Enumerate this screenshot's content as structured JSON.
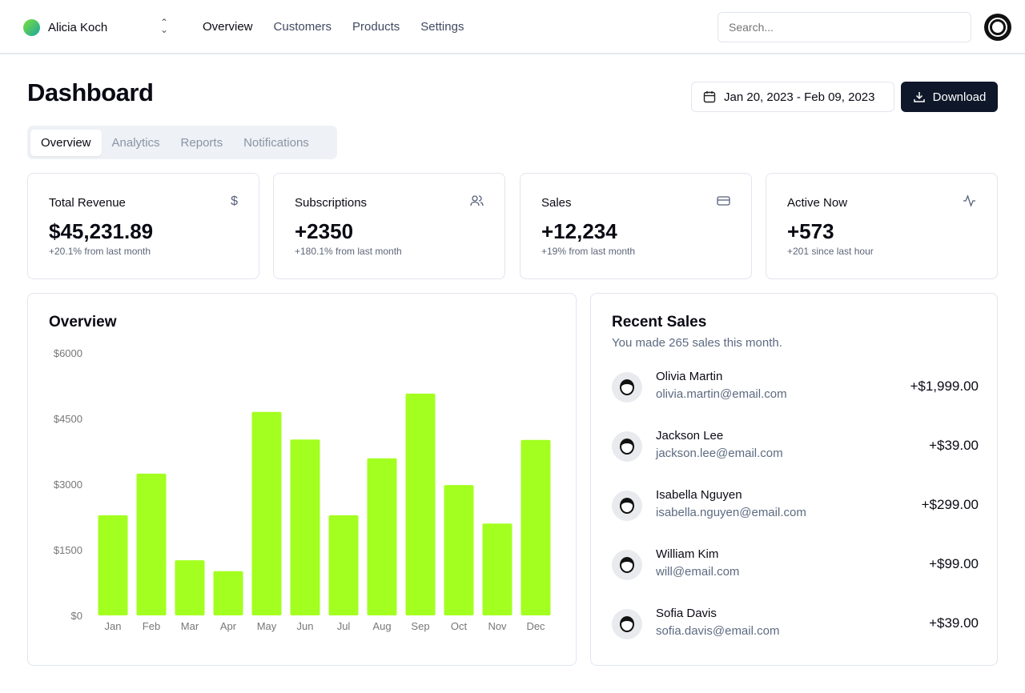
{
  "header": {
    "team": "Alicia Koch",
    "nav": [
      "Overview",
      "Customers",
      "Products",
      "Settings"
    ],
    "search_placeholder": "Search..."
  },
  "page": {
    "title": "Dashboard",
    "date_range": "Jan 20, 2023 - Feb 09, 2023",
    "download": "Download",
    "tabs": [
      "Overview",
      "Analytics",
      "Reports",
      "Notifications"
    ]
  },
  "stats": [
    {
      "title": "Total Revenue",
      "value": "$45,231.89",
      "sub": "+20.1% from last month",
      "icon": "dollar-icon"
    },
    {
      "title": "Subscriptions",
      "value": "+2350",
      "sub": "+180.1% from last month",
      "icon": "users-icon"
    },
    {
      "title": "Sales",
      "value": "+12,234",
      "sub": "+19% from last month",
      "icon": "credit-card-icon"
    },
    {
      "title": "Active Now",
      "value": "+573",
      "sub": "+201 since last hour",
      "icon": "activity-icon"
    }
  ],
  "overview": {
    "title": "Overview"
  },
  "chart_data": {
    "type": "bar",
    "categories": [
      "Jan",
      "Feb",
      "Mar",
      "Apr",
      "May",
      "Jun",
      "Jul",
      "Aug",
      "Sep",
      "Oct",
      "Nov",
      "Dec"
    ],
    "values": [
      2290,
      3240,
      1260,
      1010,
      4650,
      4020,
      2290,
      3590,
      5070,
      2980,
      2100,
      4010
    ],
    "ylim": [
      0,
      6000
    ],
    "yticks": [
      "$0",
      "$1500",
      "$3000",
      "$4500",
      "$6000"
    ],
    "ytick_values": [
      0,
      1500,
      3000,
      4500,
      6000
    ],
    "color": "#a3ff1f",
    "grid": false
  },
  "recent_sales": {
    "title": "Recent Sales",
    "subtitle": "You made 265 sales this month.",
    "items": [
      {
        "name": "Olivia Martin",
        "email": "olivia.martin@email.com",
        "amount": "+$1,999.00"
      },
      {
        "name": "Jackson Lee",
        "email": "jackson.lee@email.com",
        "amount": "+$39.00"
      },
      {
        "name": "Isabella Nguyen",
        "email": "isabella.nguyen@email.com",
        "amount": "+$299.00"
      },
      {
        "name": "William Kim",
        "email": "will@email.com",
        "amount": "+$99.00"
      },
      {
        "name": "Sofia Davis",
        "email": "sofia.davis@email.com",
        "amount": "+$39.00"
      }
    ]
  }
}
